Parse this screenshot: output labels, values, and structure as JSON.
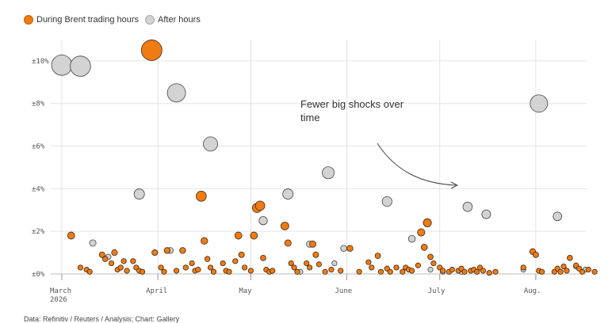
{
  "legend": {
    "items": [
      {
        "label": "During Brent trading hours",
        "color": "#f07b12"
      },
      {
        "label": "After hours",
        "color": "#d3d3d3"
      }
    ]
  },
  "annotation": {
    "lines": [
      "Fewer big shocks over",
      "time"
    ]
  },
  "footer": {
    "text": "Data: Refinitiv / Reuters / Analysis; Chart: Gallery"
  },
  "chart_data": {
    "type": "scatter",
    "title": "",
    "xlabel": "",
    "ylabel": "",
    "x_axis": {
      "type": "date",
      "range": [
        "2026-03-01",
        "2026-08-21"
      ],
      "ticks": [
        {
          "date": "2026-03-01",
          "label": [
            "March",
            "2026"
          ]
        },
        {
          "date": "2026-04-01",
          "label": [
            "April"
          ]
        },
        {
          "date": "2026-05-01",
          "label": [
            "May"
          ]
        },
        {
          "date": "2026-06-01",
          "label": [
            "June"
          ]
        },
        {
          "date": "2026-07-01",
          "label": [
            "July"
          ]
        },
        {
          "date": "2026-08-01",
          "label": [
            "Aug."
          ]
        }
      ]
    },
    "y_axis": {
      "range": [
        0,
        11
      ],
      "ticks": [
        {
          "value": 0,
          "label": "±0%"
        },
        {
          "value": 2,
          "label": "±2%"
        },
        {
          "value": 4,
          "label": "±4%"
        },
        {
          "value": 6,
          "label": "±6%"
        },
        {
          "value": 8,
          "label": "±8%"
        },
        {
          "value": 10,
          "label": "±10%"
        }
      ]
    },
    "grid": true,
    "legend_position": "top-left",
    "series": [
      {
        "name": "During Brent trading hours",
        "color": "#f07b12",
        "points": [
          [
            "2026-03-04",
            1.8
          ],
          [
            "2026-03-07",
            0.3
          ],
          [
            "2026-03-09",
            0.2
          ],
          [
            "2026-03-10",
            0.1
          ],
          [
            "2026-03-14",
            0.9
          ],
          [
            "2026-03-15",
            0.7
          ],
          [
            "2026-03-17",
            0.5
          ],
          [
            "2026-03-18",
            1.0
          ],
          [
            "2026-03-19",
            0.2
          ],
          [
            "2026-03-20",
            0.3
          ],
          [
            "2026-03-21",
            0.6
          ],
          [
            "2026-03-22",
            0.15
          ],
          [
            "2026-03-24",
            0.6
          ],
          [
            "2026-03-25",
            0.3
          ],
          [
            "2026-03-26",
            0.15
          ],
          [
            "2026-03-27",
            0.1
          ],
          [
            "2026-03-30",
            10.5
          ],
          [
            "2026-03-31",
            1.0
          ],
          [
            "2026-04-02",
            0.3
          ],
          [
            "2026-04-03",
            0.1
          ],
          [
            "2026-04-04",
            1.1
          ],
          [
            "2026-04-07",
            0.15
          ],
          [
            "2026-04-09",
            1.1
          ],
          [
            "2026-04-10",
            0.3
          ],
          [
            "2026-04-12",
            0.5
          ],
          [
            "2026-04-13",
            0.15
          ],
          [
            "2026-04-14",
            0.2
          ],
          [
            "2026-04-15",
            3.65
          ],
          [
            "2026-04-16",
            1.55
          ],
          [
            "2026-04-17",
            0.7
          ],
          [
            "2026-04-18",
            0.3
          ],
          [
            "2026-04-19",
            0.1
          ],
          [
            "2026-04-22",
            0.5
          ],
          [
            "2026-04-23",
            0.15
          ],
          [
            "2026-04-24",
            0.1
          ],
          [
            "2026-04-26",
            0.6
          ],
          [
            "2026-04-27",
            1.8
          ],
          [
            "2026-04-28",
            0.9
          ],
          [
            "2026-04-29",
            0.3
          ],
          [
            "2026-05-01",
            0.15
          ],
          [
            "2026-05-02",
            1.8
          ],
          [
            "2026-05-03",
            3.1
          ],
          [
            "2026-05-04",
            3.2
          ],
          [
            "2026-05-05",
            0.75
          ],
          [
            "2026-05-06",
            0.2
          ],
          [
            "2026-05-07",
            0.1
          ],
          [
            "2026-05-08",
            0.15
          ],
          [
            "2026-05-12",
            2.25
          ],
          [
            "2026-05-13",
            1.45
          ],
          [
            "2026-05-14",
            0.5
          ],
          [
            "2026-05-15",
            0.3
          ],
          [
            "2026-05-16",
            0.1
          ],
          [
            "2026-05-19",
            0.5
          ],
          [
            "2026-05-20",
            0.3
          ],
          [
            "2026-05-21",
            1.4
          ],
          [
            "2026-05-22",
            0.9
          ],
          [
            "2026-05-23",
            0.45
          ],
          [
            "2026-05-25",
            0.1
          ],
          [
            "2026-05-27",
            0.2
          ],
          [
            "2026-05-30",
            0.15
          ],
          [
            "2026-06-02",
            1.2
          ],
          [
            "2026-06-05",
            0.1
          ],
          [
            "2026-06-08",
            0.55
          ],
          [
            "2026-06-09",
            0.3
          ],
          [
            "2026-06-11",
            0.85
          ],
          [
            "2026-06-12",
            0.1
          ],
          [
            "2026-06-14",
            0.25
          ],
          [
            "2026-06-15",
            0.1
          ],
          [
            "2026-06-17",
            0.3
          ],
          [
            "2026-06-19",
            0.1
          ],
          [
            "2026-06-20",
            0.3
          ],
          [
            "2026-06-21",
            0.2
          ],
          [
            "2026-06-22",
            0.15
          ],
          [
            "2026-06-24",
            0.4
          ],
          [
            "2026-06-25",
            1.95
          ],
          [
            "2026-06-26",
            1.25
          ],
          [
            "2026-06-27",
            2.4
          ],
          [
            "2026-06-28",
            0.8
          ],
          [
            "2026-06-29",
            0.5
          ],
          [
            "2026-07-01",
            0.3
          ],
          [
            "2026-07-02",
            0.15
          ],
          [
            "2026-07-04",
            0.1
          ],
          [
            "2026-07-05",
            0.2
          ],
          [
            "2026-07-07",
            0.15
          ],
          [
            "2026-07-08",
            0.25
          ],
          [
            "2026-07-09",
            0.1
          ],
          [
            "2026-07-11",
            0.15
          ],
          [
            "2026-07-12",
            0.2
          ],
          [
            "2026-07-13",
            0.1
          ],
          [
            "2026-07-14",
            0.3
          ],
          [
            "2026-07-15",
            0.15
          ],
          [
            "2026-07-17",
            0.05
          ],
          [
            "2026-07-19",
            0.1
          ],
          [
            "2026-07-28",
            0.3
          ],
          [
            "2026-07-31",
            1.05
          ],
          [
            "2026-08-01",
            0.9
          ],
          [
            "2026-08-02",
            0.15
          ],
          [
            "2026-08-03",
            0.1
          ],
          [
            "2026-08-07",
            0.1
          ],
          [
            "2026-08-08",
            0.25
          ],
          [
            "2026-08-09",
            0.1
          ],
          [
            "2026-08-10",
            0.35
          ],
          [
            "2026-08-11",
            0.15
          ],
          [
            "2026-08-12",
            0.75
          ],
          [
            "2026-08-14",
            0.4
          ],
          [
            "2026-08-15",
            0.25
          ],
          [
            "2026-08-16",
            0.1
          ],
          [
            "2026-08-18",
            0.2
          ],
          [
            "2026-08-20",
            0.1
          ]
        ]
      },
      {
        "name": "After hours",
        "color": "#d3d3d3",
        "points": [
          [
            "2026-03-01",
            9.8
          ],
          [
            "2026-03-07",
            9.75
          ],
          [
            "2026-03-11",
            1.45
          ],
          [
            "2026-03-16",
            0.8
          ],
          [
            "2026-03-26",
            3.75
          ],
          [
            "2026-04-05",
            1.1
          ],
          [
            "2026-04-07",
            8.5
          ],
          [
            "2026-04-18",
            6.1
          ],
          [
            "2026-05-05",
            2.5
          ],
          [
            "2026-05-13",
            3.75
          ],
          [
            "2026-05-17",
            0.1
          ],
          [
            "2026-05-20",
            1.4
          ],
          [
            "2026-05-26",
            4.75
          ],
          [
            "2026-05-28",
            0.5
          ],
          [
            "2026-05-31",
            1.2
          ],
          [
            "2026-06-14",
            3.4
          ],
          [
            "2026-06-22",
            1.65
          ],
          [
            "2026-06-28",
            0.2
          ],
          [
            "2026-07-02",
            0.1
          ],
          [
            "2026-07-08",
            0.1
          ],
          [
            "2026-07-10",
            3.15
          ],
          [
            "2026-07-16",
            2.8
          ],
          [
            "2026-07-28",
            0.2
          ],
          [
            "2026-08-02",
            8.0
          ],
          [
            "2026-08-08",
            2.7
          ],
          [
            "2026-08-14",
            0.35
          ],
          [
            "2026-08-17",
            0.2
          ]
        ]
      }
    ]
  }
}
